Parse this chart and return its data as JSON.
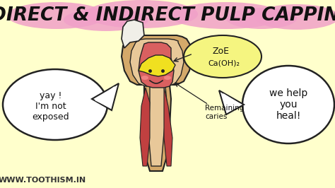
{
  "bg_color": "#ffffcc",
  "title": "DIRECT & INDIRECT PULP CAPPING",
  "title_color": "#111111",
  "title_fontsize": 19,
  "top_banner_color": "#f0a0c8",
  "website": "WWW.TOOTHISM.IN",
  "website_color": "#333333",
  "website_fontsize": 8,
  "speech_left": "yay !\nI'm not\nexposed",
  "speech_right": "we help\nyou\nheal!",
  "label_zoe": "ZoE",
  "label_ca": "Ca(OH)₂",
  "label_caries": "Remaining\ncaries",
  "tooth_beige": "#d4a96a",
  "tooth_inner_beige": "#e8c899",
  "tooth_red": "#d96060",
  "tooth_canal_color": "#c04040",
  "tooth_yellow": "#f0e020",
  "tooth_white": "#f0efe8",
  "outline_color": "#222222",
  "speech_bubble_color": "#ffffff",
  "zoe_bubble_color": "#f5f580",
  "annotation_color": "#111111",
  "pink_blob_color": "#f0a0c8"
}
